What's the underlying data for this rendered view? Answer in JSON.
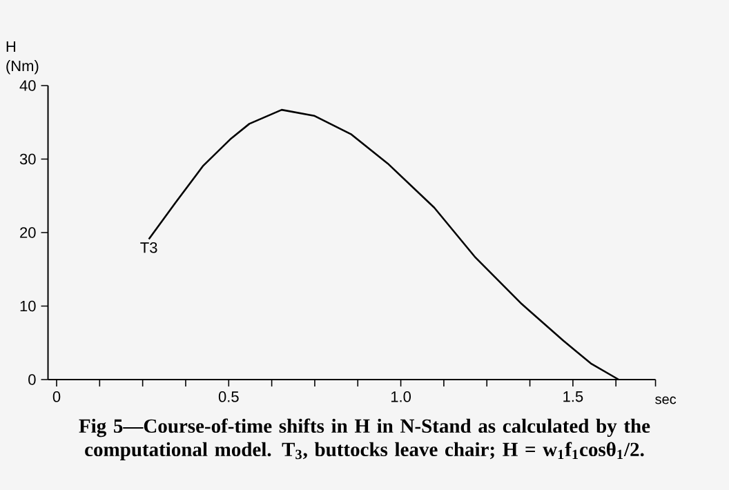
{
  "chart_data": {
    "type": "line",
    "xlabel": "sec",
    "ylabel": "H (Nm)",
    "x": [
      0.268,
      0.346,
      0.426,
      0.507,
      0.56,
      0.654,
      0.748,
      0.855,
      0.962,
      1.097,
      1.217,
      1.351,
      1.472,
      1.552,
      1.633
    ],
    "series": [
      {
        "color": "#000000",
        "values": [
          19.1,
          24.1,
          29.1,
          32.8,
          34.8,
          36.7,
          35.9,
          33.4,
          29.4,
          23.4,
          16.6,
          10.3,
          5.3,
          2.2,
          0
        ]
      }
    ],
    "xlim": [
      -0.025,
      1.74
    ],
    "ylim": [
      0,
      40
    ],
    "xticks": [
      0,
      {
        "value": 0.125,
        "label": null
      },
      {
        "value": 0.25,
        "label": null
      },
      {
        "value": 0.375,
        "label": null
      },
      {
        "value": 0.5,
        "label": "0.5"
      },
      {
        "value": 0.625,
        "label": null
      },
      {
        "value": 0.75,
        "label": null
      },
      {
        "value": 0.875,
        "label": null
      },
      {
        "value": 1.0,
        "label": "1.0"
      },
      {
        "value": 1.125,
        "label": null
      },
      {
        "value": 1.25,
        "label": null
      },
      {
        "value": 1.375,
        "label": null
      },
      {
        "value": 1.5,
        "label": "1.5"
      },
      {
        "value": 1.625,
        "label": null
      },
      {
        "value": 1.74,
        "label": null
      }
    ],
    "yticks": [
      0,
      10,
      20,
      30,
      40
    ],
    "marker": "none",
    "line_style": "solid",
    "annotations": [
      {
        "text": "T3",
        "x": 0.268,
        "y": 19.1
      },
      "**Fig 5—Course-of-time shifts in H in N-Stand as calculated by the computational model. T$_{3}$, buttocks leave chair; H = w$_{1}$f$_{1}$cosθ$_{1}$/2.**"
    ]
  }
}
